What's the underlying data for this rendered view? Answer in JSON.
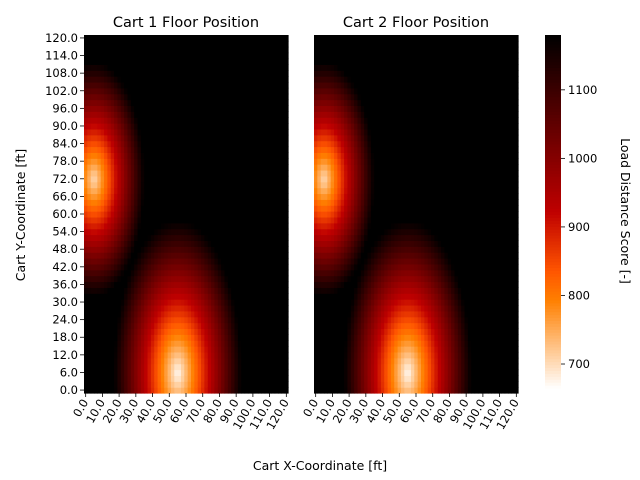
{
  "figure": {
    "xlabel": "Cart X-Coordinate [ft]",
    "ylabel": "Cart Y-Coordinate [ft]"
  },
  "chart_data": [
    {
      "type": "heatmap",
      "title": "Cart 1 Floor Position",
      "xlabel": "Cart X-Coordinate [ft]",
      "ylabel": "Cart Y-Coordinate [ft]",
      "x_tick_labels": [
        "0.0",
        "10.0",
        "20.0",
        "30.0",
        "40.0",
        "50.0",
        "60.0",
        "70.0",
        "80.0",
        "90.0",
        "100.0",
        "110.0",
        "120.0"
      ],
      "y_tick_labels": [
        "0.0",
        "6.0",
        "12.0",
        "18.0",
        "24.0",
        "30.0",
        "36.0",
        "42.0",
        "48.0",
        "54.0",
        "60.0",
        "66.0",
        "72.0",
        "78.0",
        "84.0",
        "90.0",
        "96.0",
        "102.0",
        "108.0",
        "114.0",
        "120.0"
      ],
      "xlim": [
        0,
        120
      ],
      "ylim": [
        0,
        120
      ],
      "grid_step": 2,
      "value_field": {
        "description_of_minima": "two low-score regions (light)",
        "base_value": 1180,
        "minima": [
          {
            "x": 55,
            "y": 6,
            "value": 670,
            "radius_x": 38,
            "radius_y": 52
          },
          {
            "x": 5,
            "y": 72,
            "value": 700,
            "radius_x": 30,
            "radius_y": 40
          }
        ]
      }
    },
    {
      "type": "heatmap",
      "title": "Cart 2 Floor Position",
      "xlabel": "Cart X-Coordinate [ft]",
      "ylabel": "",
      "x_tick_labels": [
        "0.0",
        "10.0",
        "20.0",
        "30.0",
        "40.0",
        "50.0",
        "60.0",
        "70.0",
        "80.0",
        "90.0",
        "100.0",
        "110.0",
        "120.0"
      ],
      "y_tick_labels": [],
      "xlim": [
        0,
        120
      ],
      "ylim": [
        0,
        120
      ],
      "grid_step": 2,
      "value_field": {
        "base_value": 1180,
        "minima": [
          {
            "x": 55,
            "y": 6,
            "value": 670,
            "radius_x": 38,
            "radius_y": 52
          },
          {
            "x": 5,
            "y": 72,
            "value": 700,
            "radius_x": 30,
            "radius_y": 40
          }
        ]
      }
    }
  ],
  "colorbar": {
    "label": "Load Distance Score [-]",
    "colormap": "gist_heat_r",
    "vmin": 665,
    "vmax": 1180,
    "tick_values": [
      700,
      800,
      900,
      1000,
      1100
    ],
    "tick_labels": [
      "700",
      "800",
      "900",
      "1000",
      "1100"
    ]
  }
}
